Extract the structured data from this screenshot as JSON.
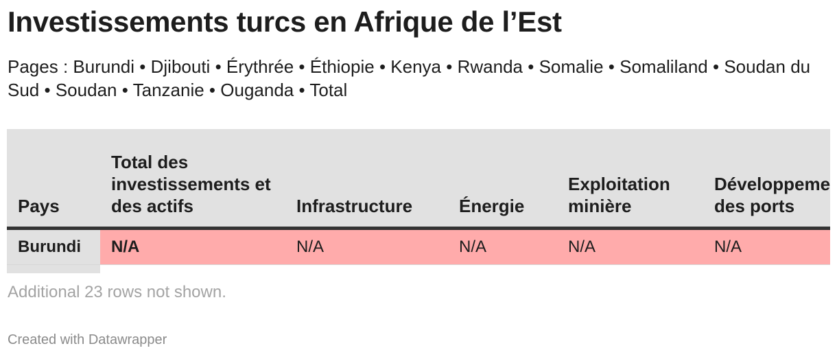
{
  "title": "Investissements turcs en Afrique de l’Est",
  "subtitle": {
    "prefix": "Pages :",
    "separator": "•",
    "pages": [
      "Burundi",
      "Djibouti",
      "Érythrée",
      "Éthiopie",
      "Kenya",
      "Rwanda",
      "Somalie",
      "Somaliland",
      "Soudan du Sud",
      "Soudan",
      "Tanzanie",
      "Ouganda",
      "Total"
    ]
  },
  "table": {
    "columns": [
      "Pays",
      "Total des investissements et des actifs",
      "Infrastructure",
      "Énergie",
      "Exploitation minière",
      "Développement des ports"
    ],
    "rows": [
      {
        "cells": [
          "Burundi",
          "N/A",
          "N/A",
          "N/A",
          "N/A",
          "N/A"
        ]
      }
    ],
    "highlight_color": "#ffabab",
    "header_color": "#e1e1e1"
  },
  "more_rows": "Additional 23 rows not shown.",
  "footer": "Created with Datawrapper"
}
